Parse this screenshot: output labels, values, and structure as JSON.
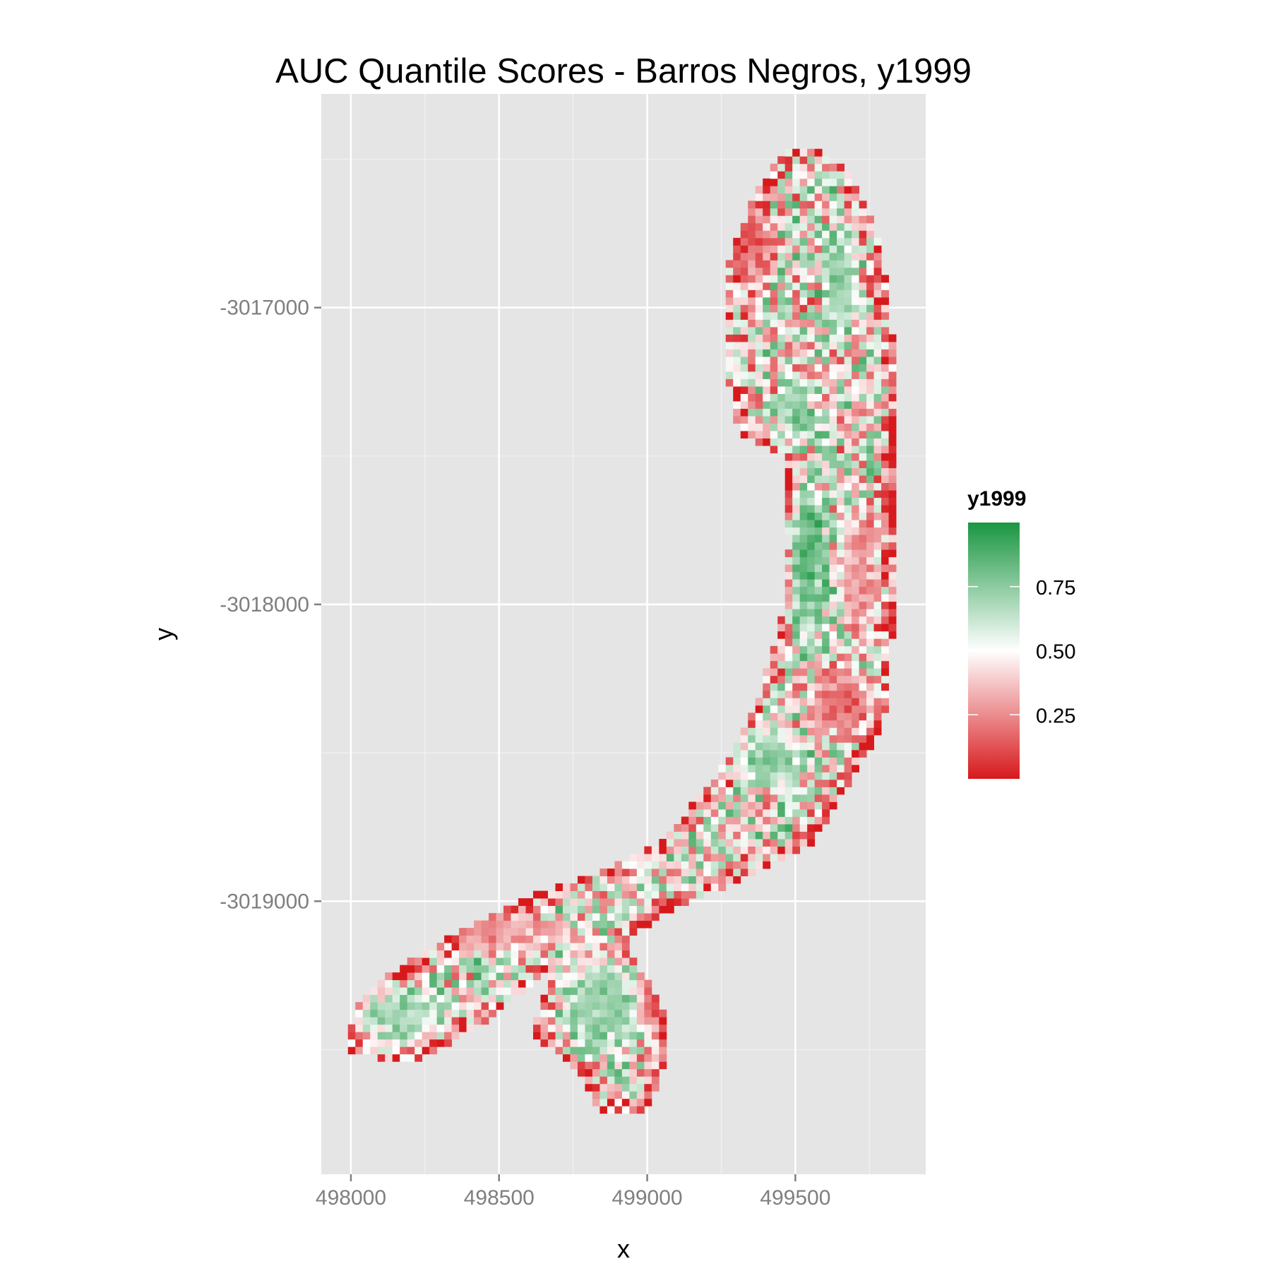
{
  "chart_data": {
    "type": "heatmap",
    "title": "AUC Quantile Scores - Barros Negros, y1999",
    "xlabel": "x",
    "ylabel": "y",
    "xlim": [
      497900,
      499940
    ],
    "ylim": [
      -3019920,
      -3016280
    ],
    "x_ticks": [
      498000,
      498500,
      499000,
      499500
    ],
    "x_tick_labels": [
      "498000",
      "498500",
      "499000",
      "499500"
    ],
    "y_ticks": [
      -3017000,
      -3018000,
      -3019000
    ],
    "y_tick_labels": [
      "-3017000",
      "-3018000",
      "-3019000"
    ],
    "grid": true,
    "legend": {
      "title": "y1999",
      "position": "right",
      "breaks": [
        0.75,
        0.5,
        0.25
      ],
      "labels": [
        "0.75",
        "0.50",
        "0.25"
      ],
      "range": [
        0,
        1
      ],
      "colors": {
        "low": "#d7191c",
        "mid": "#ffffff",
        "high": "#1a9641"
      }
    },
    "cell_size": 25,
    "outline": [
      [
        499460,
        -3016480
      ],
      [
        499560,
        -3016460
      ],
      [
        499680,
        -3016540
      ],
      [
        499790,
        -3016780
      ],
      [
        499840,
        -3017200
      ],
      [
        499830,
        -3017600
      ],
      [
        499840,
        -3018000
      ],
      [
        499800,
        -3018400
      ],
      [
        499680,
        -3018600
      ],
      [
        499560,
        -3018800
      ],
      [
        499300,
        -3018930
      ],
      [
        499050,
        -3019050
      ],
      [
        498920,
        -3019140
      ],
      [
        499050,
        -3019350
      ],
      [
        499070,
        -3019520
      ],
      [
        499000,
        -3019700
      ],
      [
        498850,
        -3019720
      ],
      [
        498780,
        -3019600
      ],
      [
        498680,
        -3019500
      ],
      [
        498600,
        -3019450
      ],
      [
        498660,
        -3019300
      ],
      [
        498660,
        -3019230
      ],
      [
        498470,
        -3019400
      ],
      [
        498240,
        -3019530
      ],
      [
        498100,
        -3019530
      ],
      [
        497990,
        -3019500
      ],
      [
        498010,
        -3019360
      ],
      [
        498090,
        -3019270
      ],
      [
        498320,
        -3019130
      ],
      [
        498580,
        -3018990
      ],
      [
        498850,
        -3018900
      ],
      [
        499050,
        -3018800
      ],
      [
        499270,
        -3018530
      ],
      [
        499380,
        -3018300
      ],
      [
        499450,
        -3018050
      ],
      [
        499480,
        -3017800
      ],
      [
        499460,
        -3017500
      ],
      [
        499310,
        -3017420
      ],
      [
        499260,
        -3017200
      ],
      [
        499270,
        -3016850
      ],
      [
        499370,
        -3016600
      ]
    ],
    "patterns": [
      {
        "kind": "green-core",
        "center": [
          499540,
          -3017850
        ],
        "radius": [
          80,
          330
        ],
        "value": 0.93
      },
      {
        "kind": "green-core",
        "center": [
          499510,
          -3017350
        ],
        "radius": [
          60,
          150
        ],
        "value": 0.82
      },
      {
        "kind": "green-core",
        "center": [
          499650,
          -3016900
        ],
        "radius": [
          70,
          260
        ],
        "value": 0.78
      },
      {
        "kind": "green-core",
        "center": [
          499410,
          -3018520
        ],
        "radius": [
          150,
          120
        ],
        "value": 0.8
      },
      {
        "kind": "green-core",
        "center": [
          498850,
          -3019350
        ],
        "radius": [
          180,
          200
        ],
        "value": 0.76
      },
      {
        "kind": "green-core",
        "center": [
          498180,
          -3019380
        ],
        "radius": [
          170,
          120
        ],
        "value": 0.74
      },
      {
        "kind": "red-core",
        "center": [
          499650,
          -3018330
        ],
        "radius": [
          140,
          150
        ],
        "value": 0.1
      },
      {
        "kind": "red-core",
        "center": [
          499360,
          -3016800
        ],
        "radius": [
          90,
          200
        ],
        "value": 0.12
      },
      {
        "kind": "red-core",
        "center": [
          499010,
          -3019330
        ],
        "radius": [
          50,
          180
        ],
        "value": 0.2
      },
      {
        "kind": "red-core",
        "center": [
          498520,
          -3019100
        ],
        "radius": [
          220,
          100
        ],
        "value": 0.25
      },
      {
        "kind": "red-core",
        "center": [
          499720,
          -3017900
        ],
        "radius": [
          80,
          300
        ],
        "value": 0.22
      }
    ]
  }
}
